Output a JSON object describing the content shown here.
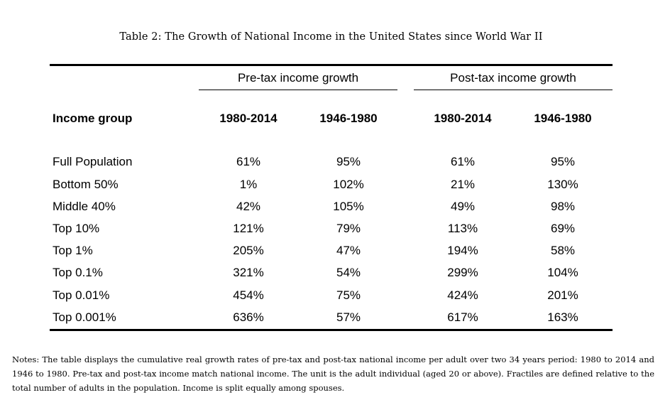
{
  "caption": "Table 2: The Growth of National Income in the United States since World War II",
  "groups": {
    "pretax": "Pre-tax income growth",
    "posttax": "Post-tax income growth"
  },
  "columns": {
    "group": "Income group",
    "pre_1980_2014": "1980-2014",
    "pre_1946_1980": "1946-1980",
    "post_1980_2014": "1980-2014",
    "post_1946_1980": "1946-1980"
  },
  "rows": [
    {
      "group": "Full Population",
      "pre_1980_2014": "61%",
      "pre_1946_1980": "95%",
      "post_1980_2014": "61%",
      "post_1946_1980": "95%"
    },
    {
      "group": "Bottom 50%",
      "pre_1980_2014": "1%",
      "pre_1946_1980": "102%",
      "post_1980_2014": "21%",
      "post_1946_1980": "130%"
    },
    {
      "group": "Middle 40%",
      "pre_1980_2014": "42%",
      "pre_1946_1980": "105%",
      "post_1980_2014": "49%",
      "post_1946_1980": "98%"
    },
    {
      "group": "Top 10%",
      "pre_1980_2014": "121%",
      "pre_1946_1980": "79%",
      "post_1980_2014": "113%",
      "post_1946_1980": "69%"
    },
    {
      "group": "Top 1%",
      "pre_1980_2014": "205%",
      "pre_1946_1980": "47%",
      "post_1980_2014": "194%",
      "post_1946_1980": "58%"
    },
    {
      "group": "Top 0.1%",
      "pre_1980_2014": "321%",
      "pre_1946_1980": "54%",
      "post_1980_2014": "299%",
      "post_1946_1980": "104%"
    },
    {
      "group": "Top 0.01%",
      "pre_1980_2014": "454%",
      "pre_1946_1980": "75%",
      "post_1980_2014": "424%",
      "post_1946_1980": "201%"
    },
    {
      "group": "Top 0.001%",
      "pre_1980_2014": "636%",
      "pre_1946_1980": "57%",
      "post_1980_2014": "617%",
      "post_1946_1980": "163%"
    }
  ],
  "notes": "Notes: The table displays the cumulative real growth rates of pre-tax and post-tax national income per adult over two 34 years period: 1980 to 2014 and 1946 to 1980. Pre-tax and post-tax income match national income. The unit is the adult individual (aged 20 or above). Fractiles are defined relative to the total number of adults in the population. Income is split equally among spouses."
}
